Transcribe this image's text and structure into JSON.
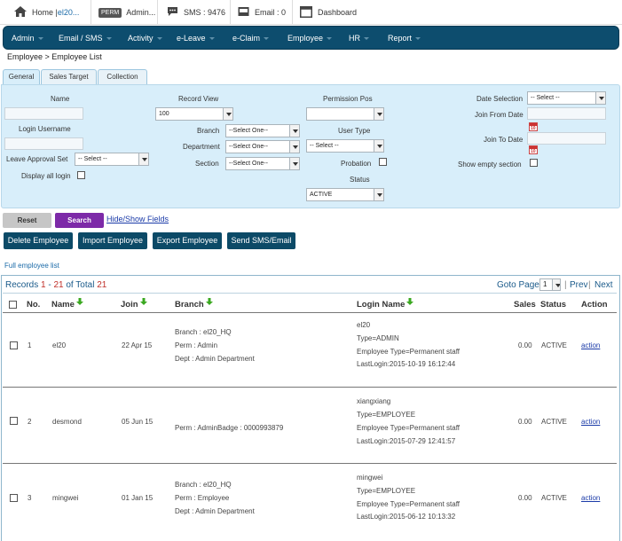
{
  "topbar": {
    "home_label": "Home | ",
    "home_user": "el20...",
    "perm_badge": "PERM",
    "admin_label": "Admin...",
    "sms_label": "SMS : 9476",
    "email_label": "Email : 0",
    "dashboard_label": "Dashboard"
  },
  "nav": [
    "Admin",
    "Email / SMS",
    "Activity",
    "e-Leave",
    "e-Claim",
    "Employee",
    "HR",
    "Report"
  ],
  "breadcrumb": "Employee > Employee List",
  "tabs": [
    "General",
    "Sales Target",
    "Collection"
  ],
  "filters": {
    "name_label": "Name",
    "login_username_label": "Login Username",
    "leave_approval_label": "Leave Approval Set",
    "leave_approval_value": "-- Select --",
    "display_all_login_label": "Display all login",
    "record_view_label": "Record View",
    "record_view_value": "100",
    "branch_label": "Branch",
    "branch_value": "--Select One--",
    "department_label": "Department",
    "department_value": "--Select One--",
    "section_label": "Section",
    "section_value": "--Select One--",
    "permission_pos_label": "Permission Pos",
    "permission_pos_value": "",
    "user_type_label": "User Type",
    "user_type_value": "-- Select --",
    "probation_label": "Probation",
    "status_label": "Status",
    "status_value": "ACTIVE",
    "date_selection_label": "Date Selection",
    "date_selection_value": "-- Select --",
    "join_from_label": "Join From Date",
    "join_to_label": "Join To Date",
    "show_empty_section_label": "Show empty section",
    "calendar_text": "10"
  },
  "buttons": {
    "reset": "Reset",
    "search": "Search",
    "hide_show": "Hide/Show Fields",
    "delete": "Delete Employee",
    "import": "Import Employee",
    "export": "Export Employee",
    "send": "Send SMS/Email"
  },
  "full_list_link": "Full employee list",
  "records": {
    "prefix": "Records ",
    "from": "1",
    "sep": " - ",
    "to": "21",
    "of_total": " of Total ",
    "total": "21"
  },
  "pager": {
    "goto_label": "Goto Page",
    "page_value": "1",
    "prev": "Prev",
    "next": "Next",
    "divider": "|"
  },
  "table": {
    "headers": {
      "no": "No.",
      "name": "Name",
      "join": "Join",
      "branch": "Branch",
      "login_name": "Login Name",
      "sales": "Sales",
      "status": "Status",
      "action": "Action"
    },
    "rows": [
      {
        "no": "1",
        "name": "el20",
        "join": "22 Apr 15",
        "branch_lines": [
          "Branch : el20_HQ",
          "Perm : Admin",
          "Dept : Admin Department"
        ],
        "login_lines": [
          "el20",
          "Type=ADMIN",
          "Employee Type=Permanent staff",
          "LastLogin:2015-10-19 16:12:44"
        ],
        "sales": "0.00",
        "status": "ACTIVE",
        "action": "action"
      },
      {
        "no": "2",
        "name": "desmond",
        "join": "05 Jun 15",
        "branch_lines": [
          "Perm : AdminBadge : 0000993879"
        ],
        "login_lines": [
          "xiangxiang",
          "Type=EMPLOYEE",
          "Employee Type=Permanent staff",
          "LastLogin:2015-07-29 12:41:57"
        ],
        "sales": "0.00",
        "status": "ACTIVE",
        "action": "action"
      },
      {
        "no": "3",
        "name": "mingwei",
        "join": "01 Jan 15",
        "branch_lines": [
          "Branch : el20_HQ",
          "Perm : Employee",
          "Dept : Admin Department"
        ],
        "login_lines": [
          "mingwei",
          "Type=EMPLOYEE",
          "Employee Type=Permanent staff",
          "LastLogin:2015-06-12 10:13:32"
        ],
        "sales": "0.00",
        "status": "ACTIVE",
        "action": "action"
      }
    ]
  },
  "colors": {
    "nav_bg": "#0d4d6e",
    "filter_bg": "#d8eefa",
    "action_btn": "#0c4a67",
    "search_btn": "#7d2aa8",
    "records_red": "#c0302a"
  }
}
